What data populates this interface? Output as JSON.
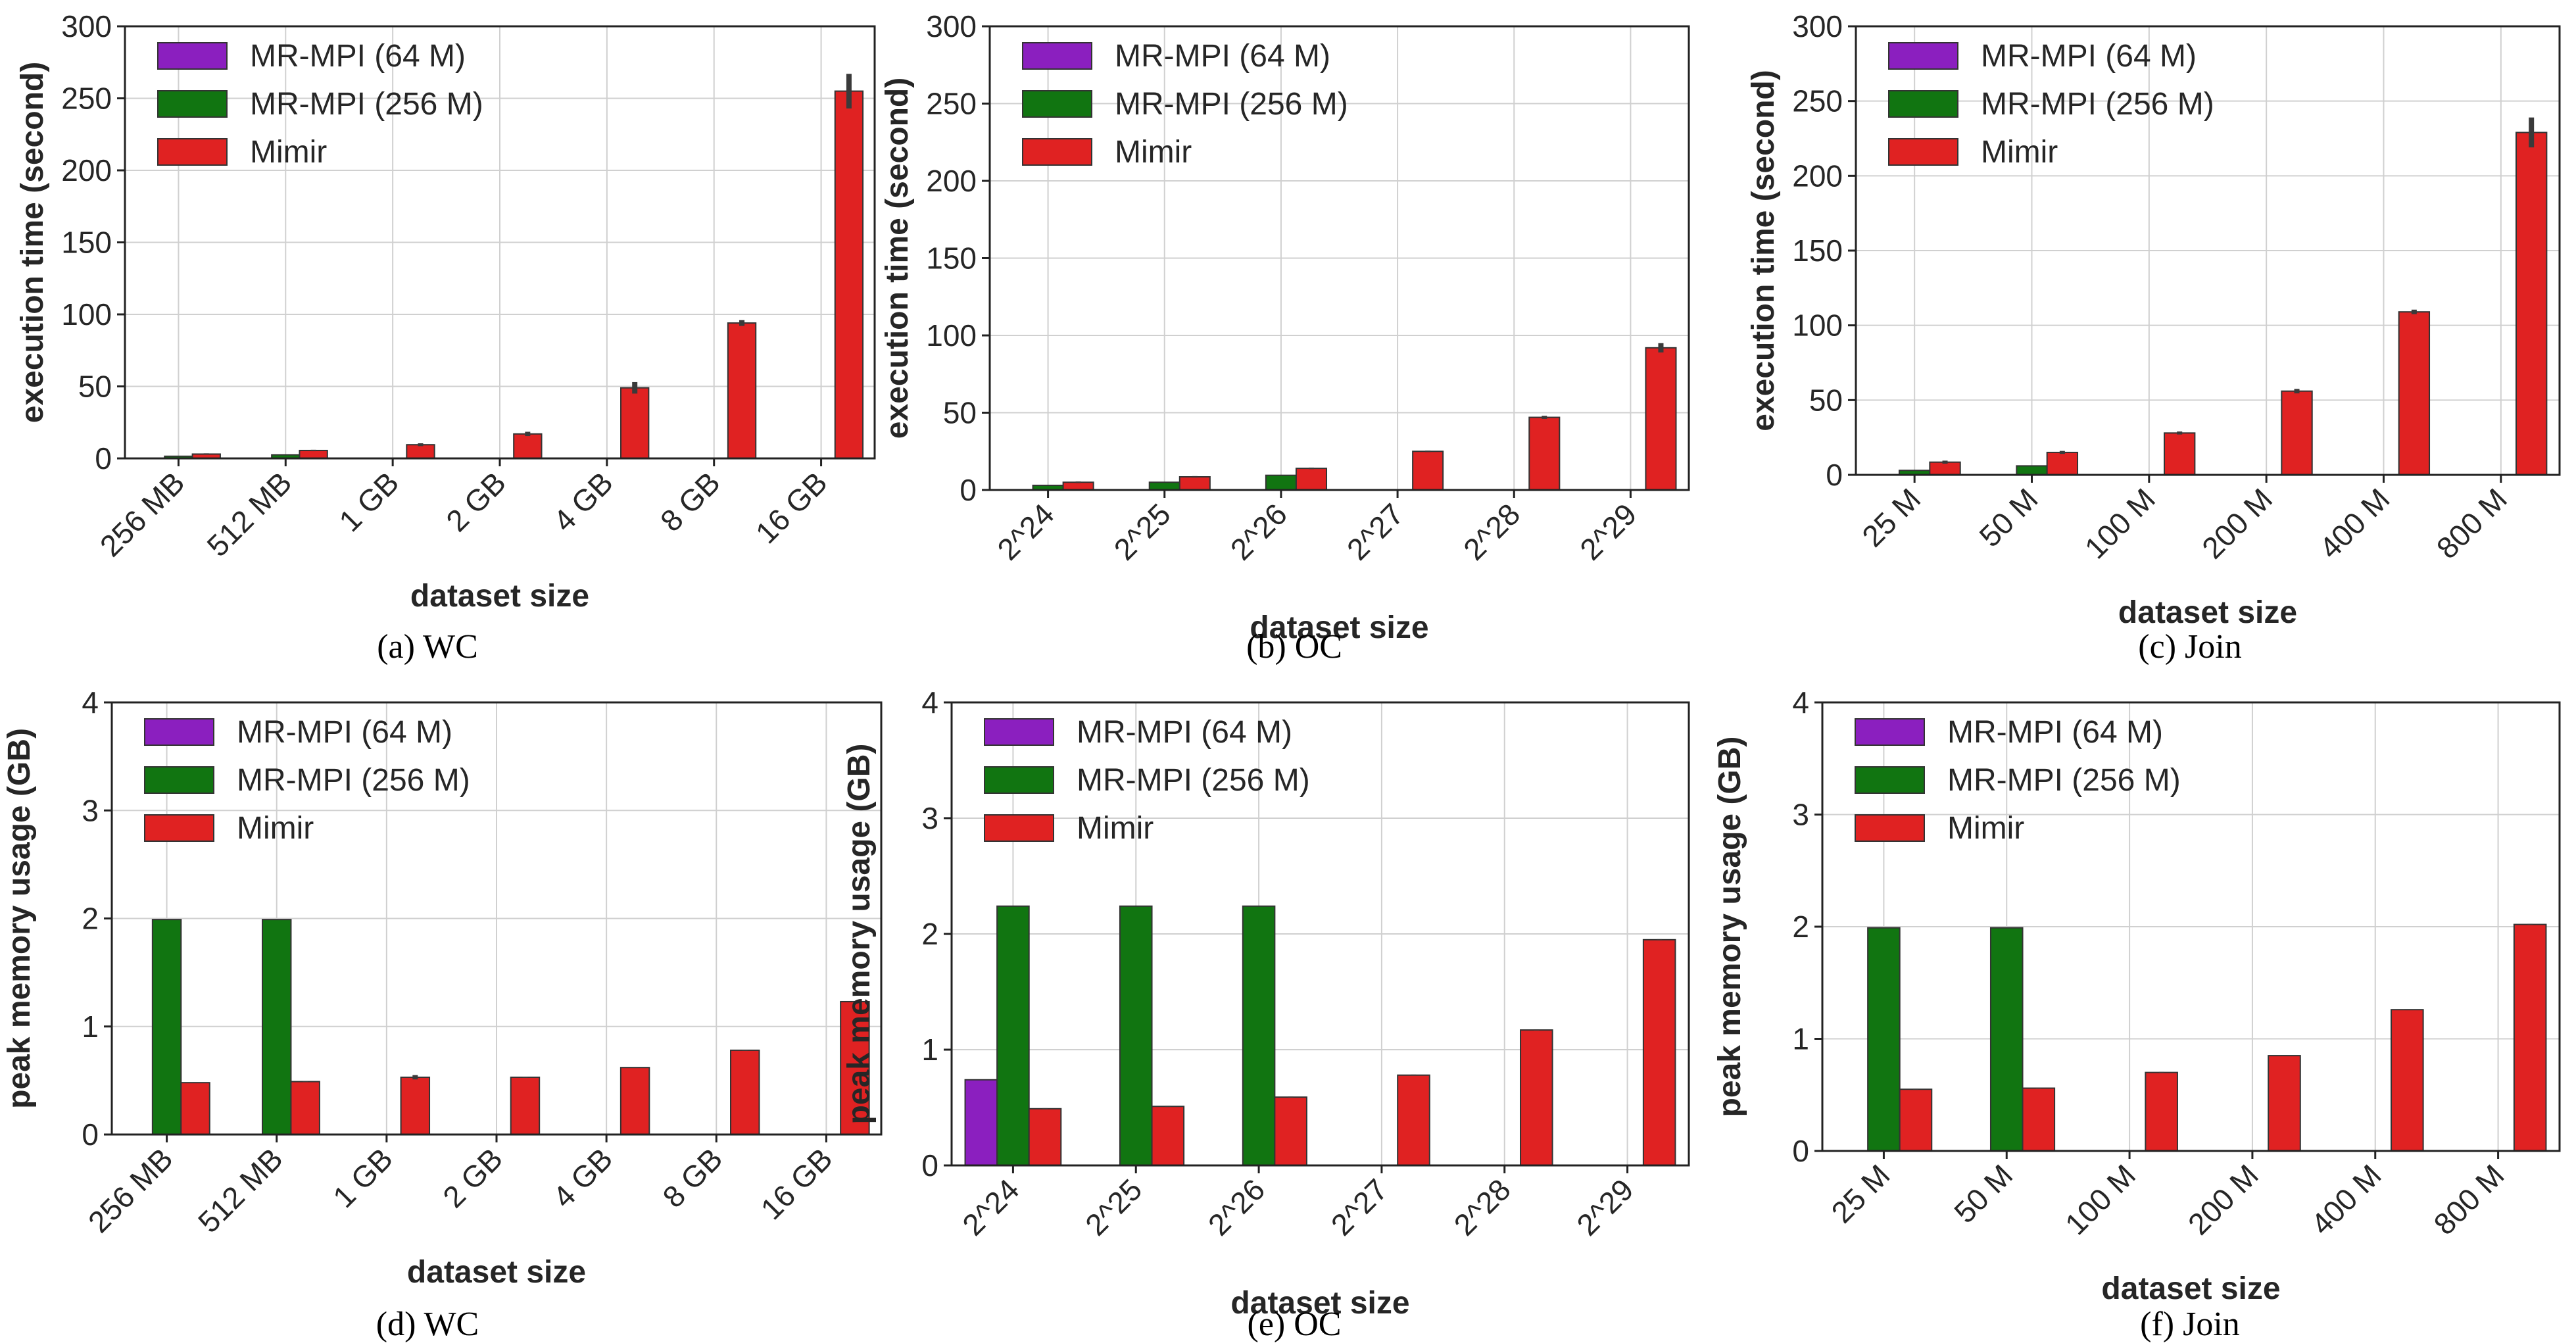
{
  "colors": {
    "mrmpi64": "#8b1fbf",
    "mrmpi256": "#117511",
    "mimir": "#e02222",
    "grid": "#d0d0d0",
    "error": "#3a3a3a"
  },
  "chart_data": [
    {
      "id": "a",
      "type": "bar",
      "caption": "(a) WC",
      "xlabel": "dataset size",
      "ylabel": "execution time (second)",
      "ylim": [
        0,
        300
      ],
      "yticks": [
        0,
        50,
        100,
        150,
        200,
        250,
        300
      ],
      "categories": [
        "256 MB",
        "512 MB",
        "1 GB",
        "2 GB",
        "4 GB",
        "8 GB",
        "16 GB"
      ],
      "legend": [
        "MR-MPI (64 M)",
        "MR-MPI (256 M)",
        "Mimir"
      ],
      "legend_position": "top-left",
      "grid": true,
      "series": [
        {
          "name": "MR-MPI (64 M)",
          "color_key": "mrmpi64",
          "values": [
            null,
            null,
            null,
            null,
            null,
            null,
            null
          ],
          "errors": [
            0,
            0,
            0,
            0,
            0,
            0,
            0
          ]
        },
        {
          "name": "MR-MPI (256 M)",
          "color_key": "mrmpi256",
          "values": [
            1.5,
            2.5,
            null,
            null,
            null,
            null,
            null
          ],
          "errors": [
            0,
            0,
            0,
            0,
            0,
            0,
            0
          ]
        },
        {
          "name": "Mimir",
          "color_key": "mimir",
          "values": [
            3,
            5.5,
            9.5,
            17,
            49,
            94,
            255
          ],
          "errors": [
            0.5,
            0.5,
            1,
            1.5,
            4,
            2,
            12
          ]
        }
      ]
    },
    {
      "id": "b",
      "type": "bar",
      "caption": "(b) OC",
      "xlabel": "dataset size",
      "ylabel": "execution time (second)",
      "ylim": [
        0,
        300
      ],
      "yticks": [
        0,
        50,
        100,
        150,
        200,
        250,
        300
      ],
      "categories": [
        "2^24",
        "2^25",
        "2^26",
        "2^27",
        "2^28",
        "2^29"
      ],
      "legend": [
        "MR-MPI (64 M)",
        "MR-MPI (256 M)",
        "Mimir"
      ],
      "legend_position": "top-left",
      "grid": true,
      "series": [
        {
          "name": "MR-MPI (64 M)",
          "color_key": "mrmpi64",
          "values": [
            null,
            null,
            null,
            null,
            null,
            null
          ],
          "errors": [
            0,
            0,
            0,
            0,
            0,
            0
          ]
        },
        {
          "name": "MR-MPI (256 M)",
          "color_key": "mrmpi256",
          "values": [
            3,
            5,
            9.5,
            null,
            null,
            null
          ],
          "errors": [
            0,
            0,
            0,
            0,
            0,
            0
          ]
        },
        {
          "name": "Mimir",
          "color_key": "mimir",
          "values": [
            5,
            8.5,
            14,
            25,
            47,
            92
          ],
          "errors": [
            0.5,
            0.5,
            0.5,
            0.5,
            1,
            3
          ]
        }
      ]
    },
    {
      "id": "c",
      "type": "bar",
      "caption": "(c) Join",
      "xlabel": "dataset size",
      "ylabel": "execution time (second)",
      "ylim": [
        0,
        300
      ],
      "yticks": [
        0,
        50,
        100,
        150,
        200,
        250,
        300
      ],
      "categories": [
        "25 M",
        "50 M",
        "100 M",
        "200 M",
        "400 M",
        "800 M"
      ],
      "legend": [
        "MR-MPI (64 M)",
        "MR-MPI (256 M)",
        "Mimir"
      ],
      "legend_position": "top-left",
      "grid": true,
      "series": [
        {
          "name": "MR-MPI (64 M)",
          "color_key": "mrmpi64",
          "values": [
            null,
            null,
            null,
            null,
            null,
            null
          ],
          "errors": [
            0,
            0,
            0,
            0,
            0,
            0
          ]
        },
        {
          "name": "MR-MPI (256 M)",
          "color_key": "mrmpi256",
          "values": [
            3,
            6,
            null,
            null,
            null,
            null
          ],
          "errors": [
            0,
            0,
            0,
            0,
            0,
            0
          ]
        },
        {
          "name": "Mimir",
          "color_key": "mimir",
          "values": [
            8.5,
            15,
            28,
            56,
            109,
            229
          ],
          "errors": [
            1,
            1,
            1,
            1.5,
            1.5,
            10
          ]
        }
      ]
    },
    {
      "id": "d",
      "type": "bar",
      "caption": "(d) WC",
      "xlabel": "dataset size",
      "ylabel": "peak memory usage (GB)",
      "ylim": [
        0,
        4
      ],
      "yticks": [
        0,
        1,
        2,
        3,
        4
      ],
      "categories": [
        "256 MB",
        "512 MB",
        "1 GB",
        "2 GB",
        "4 GB",
        "8 GB",
        "16 GB"
      ],
      "legend": [
        "MR-MPI (64 M)",
        "MR-MPI (256 M)",
        "Mimir"
      ],
      "legend_position": "top-left",
      "grid": true,
      "series": [
        {
          "name": "MR-MPI (64 M)",
          "color_key": "mrmpi64",
          "values": [
            null,
            null,
            null,
            null,
            null,
            null,
            null
          ],
          "errors": [
            0,
            0,
            0,
            0,
            0,
            0,
            0
          ]
        },
        {
          "name": "MR-MPI (256 M)",
          "color_key": "mrmpi256",
          "values": [
            1.99,
            1.99,
            null,
            null,
            null,
            null,
            null
          ],
          "errors": [
            0,
            0,
            0,
            0,
            0,
            0,
            0
          ]
        },
        {
          "name": "Mimir",
          "color_key": "mimir",
          "values": [
            0.48,
            0.49,
            0.53,
            0.53,
            0.62,
            0.78,
            1.23
          ],
          "errors": [
            0.005,
            0.005,
            0.02,
            0.005,
            0.005,
            0.005,
            0.005
          ]
        }
      ]
    },
    {
      "id": "e",
      "type": "bar",
      "caption": "(e) OC",
      "xlabel": "dataset size",
      "ylabel": "peak memory usage (GB)",
      "ylim": [
        0,
        4
      ],
      "yticks": [
        0,
        1,
        2,
        3,
        4
      ],
      "categories": [
        "2^24",
        "2^25",
        "2^26",
        "2^27",
        "2^28",
        "2^29"
      ],
      "legend": [
        "MR-MPI (64 M)",
        "MR-MPI (256 M)",
        "Mimir"
      ],
      "legend_position": "top-left",
      "grid": true,
      "series": [
        {
          "name": "MR-MPI (64 M)",
          "color_key": "mrmpi64",
          "values": [
            0.74,
            null,
            null,
            null,
            null,
            null
          ],
          "errors": [
            0,
            0,
            0,
            0,
            0,
            0
          ]
        },
        {
          "name": "MR-MPI (256 M)",
          "color_key": "mrmpi256",
          "values": [
            2.24,
            2.24,
            2.24,
            null,
            null,
            null
          ],
          "errors": [
            0,
            0,
            0,
            0,
            0,
            0
          ]
        },
        {
          "name": "Mimir",
          "color_key": "mimir",
          "values": [
            0.49,
            0.51,
            0.59,
            0.78,
            1.17,
            1.95
          ],
          "errors": [
            0.005,
            0.005,
            0.005,
            0.005,
            0.005,
            0.005
          ]
        }
      ]
    },
    {
      "id": "f",
      "type": "bar",
      "caption": "(f) Join",
      "xlabel": "dataset size",
      "ylabel": "peak memory usage (GB)",
      "ylim": [
        0,
        4
      ],
      "yticks": [
        0,
        1,
        2,
        3,
        4
      ],
      "categories": [
        "25 M",
        "50 M",
        "100 M",
        "200 M",
        "400 M",
        "800 M"
      ],
      "legend": [
        "MR-MPI (64 M)",
        "MR-MPI (256 M)",
        "Mimir"
      ],
      "legend_position": "top-left",
      "grid": true,
      "series": [
        {
          "name": "MR-MPI (64 M)",
          "color_key": "mrmpi64",
          "values": [
            null,
            null,
            null,
            null,
            null,
            null
          ],
          "errors": [
            0,
            0,
            0,
            0,
            0,
            0
          ]
        },
        {
          "name": "MR-MPI (256 M)",
          "color_key": "mrmpi256",
          "values": [
            1.99,
            1.99,
            null,
            null,
            null,
            null
          ],
          "errors": [
            0,
            0,
            0,
            0,
            0,
            0
          ]
        },
        {
          "name": "Mimir",
          "color_key": "mimir",
          "values": [
            0.55,
            0.56,
            0.7,
            0.85,
            1.26,
            2.02
          ],
          "errors": [
            0.005,
            0.005,
            0.005,
            0.005,
            0.005,
            0.005
          ]
        }
      ]
    }
  ]
}
